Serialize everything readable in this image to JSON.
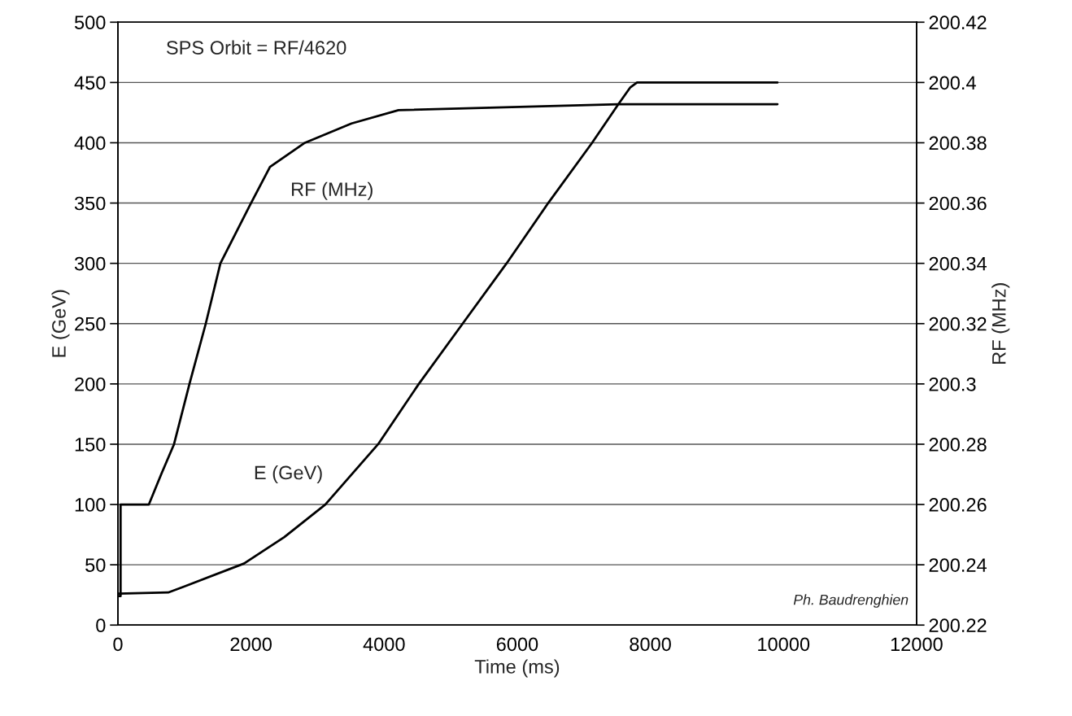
{
  "chart_data": {
    "type": "line",
    "xlabel": "Time (ms)",
    "ylabel": "E (GeV)",
    "y2label": "RF (MHz)",
    "xlim": [
      0,
      12000
    ],
    "xticks": [
      0,
      2000,
      4000,
      6000,
      8000,
      10000,
      12000
    ],
    "ylim": [
      0,
      500
    ],
    "yticks": [
      0,
      50,
      100,
      150,
      200,
      250,
      300,
      350,
      400,
      450,
      500
    ],
    "y2lim": [
      200.22,
      200.42
    ],
    "y2ticks": [
      200.22,
      200.24,
      200.26,
      200.28,
      200.3,
      200.32,
      200.34,
      200.36,
      200.38,
      200.4,
      200.42
    ],
    "grid": "y",
    "legend": false,
    "marker": "none",
    "line_style": "solid",
    "annotations": [
      "SPS Orbit = RF/4620",
      "RF (MHz)",
      "E (GeV)",
      "Ph. Baudrenghien"
    ],
    "series": [
      {
        "color": "#000000",
        "x": [
          0,
          40,
          40,
          465,
          650,
          843,
          1075,
          1320,
          1540,
          2000,
          2285,
          2810,
          3510,
          4216,
          7520,
          9910
        ],
        "values": [
          200.2296,
          200.2296,
          200.26,
          200.26,
          200.27,
          200.28,
          200.3,
          200.32,
          200.34,
          200.36,
          200.372,
          200.38,
          200.3864,
          200.3908,
          200.3928,
          200.3928
        ],
        "axis": "y2"
      },
      {
        "color": "#000000",
        "x": [
          0,
          755,
          1000,
          1894,
          2500,
          3116,
          3910,
          4521,
          5180,
          5840,
          6465,
          7125,
          7520,
          7700,
          7800,
          9910
        ],
        "values": [
          26,
          27,
          32,
          51,
          73,
          100,
          150,
          200,
          250,
          300,
          350,
          400,
          432,
          446,
          450,
          450
        ],
        "axis": "y"
      }
    ]
  }
}
